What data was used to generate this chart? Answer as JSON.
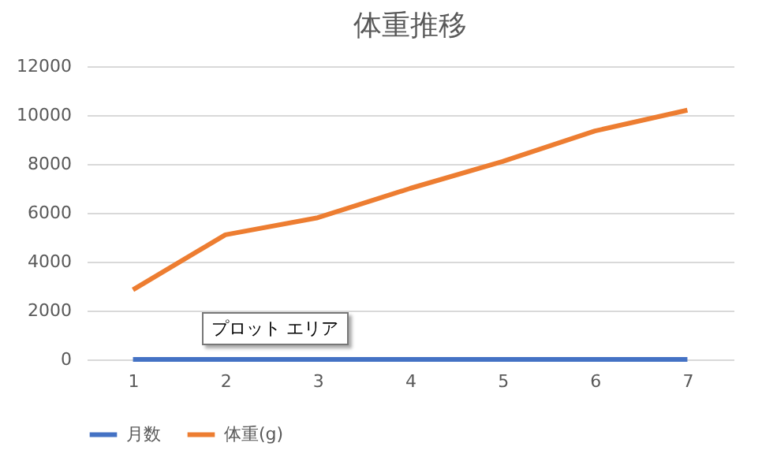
{
  "chart_data": {
    "type": "line",
    "title": "体重推移",
    "categories": [
      "1",
      "2",
      "3",
      "4",
      "5",
      "6",
      "7"
    ],
    "series": [
      {
        "name": "月数",
        "color": "#4472c4",
        "values": [
          0,
          0,
          0,
          0,
          0,
          0,
          0
        ]
      },
      {
        "name": "体重(g)",
        "color": "#ed7d31",
        "values": [
          2850,
          5100,
          5800,
          7000,
          8100,
          9350,
          10200
        ]
      }
    ],
    "ylim": [
      0,
      12000
    ],
    "yticks": [
      0,
      2000,
      4000,
      6000,
      8000,
      10000,
      12000
    ],
    "grid": "y",
    "legend": "bottom",
    "marker": "none",
    "annotations": [
      "プロット エリア"
    ]
  }
}
